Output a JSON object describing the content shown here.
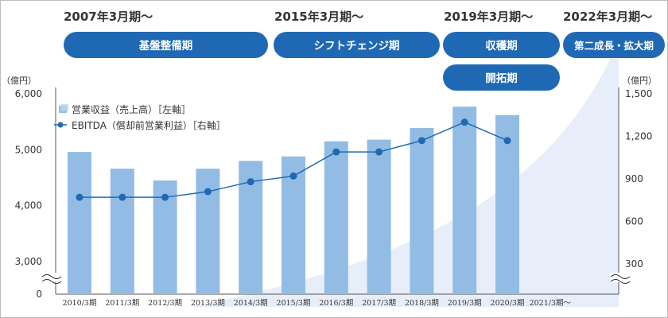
{
  "eras": [
    {
      "period": "2007年3月期〜",
      "phase": "基盤整備期"
    },
    {
      "period": "2015年3月期〜",
      "phase": "シフトチェンジ期"
    },
    {
      "period": "2019年3月期〜",
      "phase": "収穫期",
      "phase2": "開拓期"
    },
    {
      "period": "2022年3月期〜",
      "phase": "第二成長・拡大期"
    }
  ],
  "colors": {
    "pill": "#1f69b4",
    "bar": "#92bce4",
    "line": "#1f69b4",
    "swoosh": "#e8eef9"
  },
  "chart_data": {
    "type": "bar",
    "categories": [
      "2010/3期",
      "2011/3期",
      "2012/3期",
      "2013/3期",
      "2014/3期",
      "2015/3期",
      "2016/3期",
      "2017/3期",
      "2018/3期",
      "2019/3期",
      "2020/3期",
      "2021/3期〜"
    ],
    "left_unit": "（億円）",
    "right_unit": "（億円）",
    "left_ticks": [
      6000,
      5000,
      4000,
      3000,
      0
    ],
    "left_tick_labels": [
      "6,000",
      "5,000",
      "4,000",
      "3,000",
      "0"
    ],
    "right_ticks": [
      1500,
      1200,
      900,
      600,
      300
    ],
    "right_tick_labels": [
      "1,500",
      "1,200",
      "900",
      "600",
      "300"
    ],
    "axis_break": true,
    "series": [
      {
        "name": "営業収益（売上高）［左軸］",
        "axis": "left",
        "type": "bar",
        "values": [
          4960,
          4660,
          4450,
          4660,
          4800,
          4880,
          5150,
          5180,
          5390,
          5770,
          5620,
          null
        ]
      },
      {
        "name": "EBITDA（償却前営業利益）［右軸］",
        "axis": "right",
        "type": "line",
        "values": [
          770,
          770,
          770,
          810,
          880,
          920,
          1090,
          1090,
          1170,
          1300,
          1170,
          null
        ]
      }
    ]
  }
}
